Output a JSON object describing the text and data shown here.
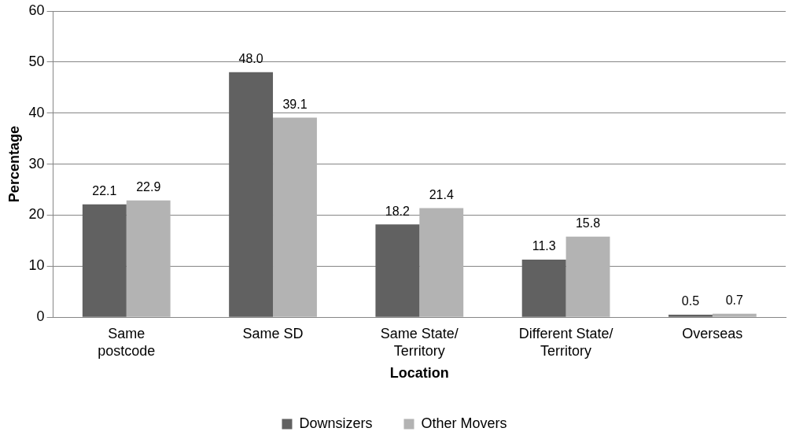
{
  "chart_data": {
    "type": "bar",
    "xlabel": "Location",
    "ylabel": "Percentage",
    "categories": [
      "Same\npostcode",
      "Same SD",
      "Same State/\nTerritory",
      "Different State/\nTerritory",
      "Overseas"
    ],
    "series": [
      {
        "name": "Downsizers",
        "color": "#616161",
        "values": [
          22.1,
          48.0,
          18.2,
          11.3,
          0.5
        ],
        "value_labels": [
          "22.1",
          "48.0",
          "18.2",
          "11.3",
          "0.5"
        ]
      },
      {
        "name": "Other Movers",
        "color": "#b3b3b3",
        "values": [
          22.9,
          39.1,
          21.4,
          15.8,
          0.7
        ],
        "value_labels": [
          "22.9",
          "39.1",
          "21.4",
          "15.8",
          "0.7"
        ]
      }
    ],
    "ylim": [
      0,
      60
    ],
    "yticks": [
      0,
      10,
      20,
      30,
      40,
      50,
      60
    ],
    "grid": "y",
    "legend": "bottom"
  }
}
